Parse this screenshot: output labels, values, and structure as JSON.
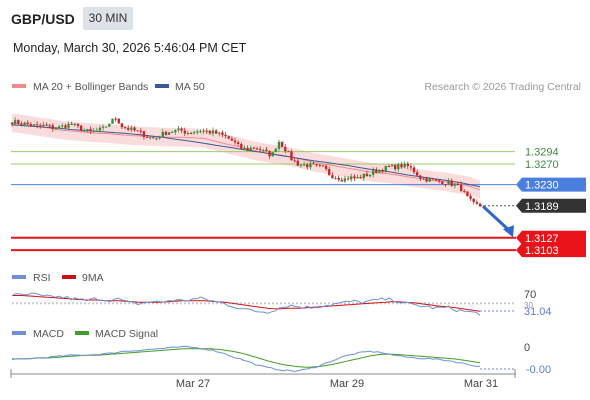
{
  "header": {
    "symbol": "GBP/USD",
    "timeframe": "30 MIN",
    "datetime": "Monday, March 30, 2026 5:46:04 PM CET"
  },
  "legend": {
    "ma20_label": "MA 20 + Bollinger Bands",
    "ma50_label": "MA 50",
    "copyright": "Research © 2026 Trading Central"
  },
  "colors": {
    "ma20": "#f08a8a",
    "bollinger_fill": "#fbdcdc",
    "ma50": "#3b5998",
    "candle_up": "#3d8c3d",
    "candle_down": "#c62828",
    "resistance": "#9acd6e",
    "pivot": "#4a7fe0",
    "support": "#e8141a",
    "last_price": "#333333",
    "rsi": "#6f8fd8",
    "rsi_ma": "#cc1111",
    "macd": "#6f8fd8",
    "macd_signal": "#3f9e2a"
  },
  "chart_data": [
    {
      "type": "candlestick",
      "title": "",
      "ylim": [
        1.308,
        1.34
      ],
      "x_ticks": [
        "Mar 27",
        "Mar 29",
        "Mar 31"
      ],
      "levels": [
        {
          "value": 1.3294,
          "label": "1.3294",
          "kind": "resistance"
        },
        {
          "value": 1.327,
          "label": "1.3270",
          "kind": "resistance"
        },
        {
          "value": 1.323,
          "label": "1.3230",
          "kind": "pivot"
        },
        {
          "value": 1.3189,
          "label": "1.3189",
          "kind": "last"
        },
        {
          "value": 1.3127,
          "label": "1.3127",
          "kind": "support"
        },
        {
          "value": 1.3103,
          "label": "1.3103",
          "kind": "support"
        }
      ],
      "close_path": [
        1.3352,
        1.335,
        1.3348,
        1.3346,
        1.3342,
        1.3345,
        1.3341,
        1.334,
        1.3344,
        1.3347,
        1.3342,
        1.3336,
        1.3332,
        1.3334,
        1.3338,
        1.335,
        1.336,
        1.3342,
        1.3338,
        1.3334,
        1.3329,
        1.3322,
        1.3319,
        1.3327,
        1.3333,
        1.3334,
        1.3335,
        1.3331,
        1.3333,
        1.3335,
        1.3333,
        1.3331,
        1.3327,
        1.3322,
        1.3314,
        1.3302,
        1.3298,
        1.3302,
        1.33,
        1.3292,
        1.3287,
        1.3315,
        1.33,
        1.328,
        1.327,
        1.3268,
        1.3267,
        1.3264,
        1.3262,
        1.3248,
        1.3245,
        1.324,
        1.3244,
        1.3242,
        1.3247,
        1.325,
        1.3257,
        1.326,
        1.3264,
        1.3265,
        1.3267,
        1.3265,
        1.3255,
        1.3242,
        1.324,
        1.3237,
        1.3236,
        1.3234,
        1.323,
        1.3224,
        1.3205,
        1.3192,
        1.3189
      ],
      "ma20_path": [
        1.335,
        1.3347,
        1.3343,
        1.334,
        1.3336,
        1.3334,
        1.3332,
        1.333,
        1.3329,
        1.3327,
        1.3325,
        1.3324,
        1.3323,
        1.3322,
        1.3322,
        1.3321,
        1.332,
        1.3314,
        1.3308,
        1.3303,
        1.3297,
        1.3292,
        1.3289,
        1.3285,
        1.328,
        1.3274,
        1.327,
        1.3266,
        1.3262,
        1.3258,
        1.3254,
        1.3252,
        1.3249,
        1.3245,
        1.3242,
        1.3238,
        1.3236,
        1.3232,
        1.3228,
        1.322
      ],
      "ma50_path": [
        1.3346,
        1.3344,
        1.3342,
        1.334,
        1.3337,
        1.3335,
        1.3333,
        1.3331,
        1.3329,
        1.3326,
        1.3323,
        1.3319,
        1.3315,
        1.3311,
        1.3306,
        1.3302,
        1.3297,
        1.3293,
        1.3288,
        1.3284,
        1.3279,
        1.3275,
        1.3271,
        1.3267,
        1.3262,
        1.3258,
        1.3254,
        1.3249,
        1.3245,
        1.3241,
        1.3237,
        1.3232,
        1.3226
      ],
      "bollinger_width": 0.0018,
      "forecast_end": 1.313
    },
    {
      "type": "line",
      "name": "RSI",
      "series": [
        {
          "name": "RSI",
          "values": [
            56,
            55,
            57,
            53,
            54,
            52,
            50,
            48,
            51,
            49,
            50,
            45,
            44,
            47,
            46,
            49,
            48,
            50,
            51,
            47,
            44,
            40,
            36,
            34,
            33,
            38,
            42,
            40,
            39,
            41,
            43,
            45,
            47,
            46,
            48,
            50,
            49,
            44,
            42,
            40,
            38,
            39,
            35,
            33,
            31
          ]
        },
        {
          "name": "9MA",
          "values": [
            55,
            55,
            54,
            53,
            52,
            51,
            50,
            49,
            49,
            48,
            48,
            47,
            46,
            46,
            46,
            47,
            48,
            48,
            48,
            47,
            46,
            44,
            42,
            40,
            38,
            37,
            38,
            38,
            39,
            40,
            41,
            42,
            43,
            44,
            45,
            46,
            47,
            46,
            45,
            43,
            41,
            40,
            38,
            36,
            34
          ]
        }
      ],
      "ylim": [
        0,
        100
      ],
      "ref_lines": [
        70,
        30
      ],
      "labels": {
        "upper": "70",
        "lower": "30",
        "current": "31.04"
      },
      "legend": [
        "RSI",
        "9MA"
      ]
    },
    {
      "type": "line",
      "name": "MACD",
      "series": [
        {
          "name": "MACD",
          "values": [
            0.0003,
            0.0004,
            0.0005,
            0.0006,
            0.0007,
            0.0008,
            0.0008,
            0.0009,
            0.001,
            0.0012,
            0.0013,
            0.0014,
            0.0015,
            0.0016,
            0.0017,
            0.0016,
            0.0014,
            0.0011,
            0.0006,
            0.0002,
            -0.0003,
            -0.0006,
            -0.0008,
            -0.0009,
            -0.0007,
            -0.0003,
            0.0002,
            0.0007,
            0.001,
            0.0012,
            0.0011,
            0.0008,
            0.0006,
            0.0005,
            0.0004,
            0.0003,
            0.0001,
            -0.0002,
            -0.0004
          ]
        },
        {
          "name": "MACD Signal",
          "values": [
            0.0004,
            0.0004,
            0.0005,
            0.0005,
            0.0006,
            0.0007,
            0.0008,
            0.0008,
            0.0009,
            0.001,
            0.0011,
            0.0012,
            0.0013,
            0.0014,
            0.0015,
            0.0015,
            0.0015,
            0.0014,
            0.0012,
            0.0009,
            0.0005,
            0.0001,
            -0.0002,
            -0.0004,
            -0.0005,
            -0.0004,
            -0.0002,
            0.0001,
            0.0004,
            0.0007,
            0.0009,
            0.0009,
            0.0008,
            0.0007,
            0.0006,
            0.0005,
            0.0004,
            0.0002,
            0.0
          ]
        }
      ],
      "ylim": [
        -0.001,
        0.002
      ],
      "labels": {
        "zero": "0",
        "current": "-0.00"
      },
      "legend": [
        "MACD",
        "MACD Signal"
      ]
    }
  ]
}
